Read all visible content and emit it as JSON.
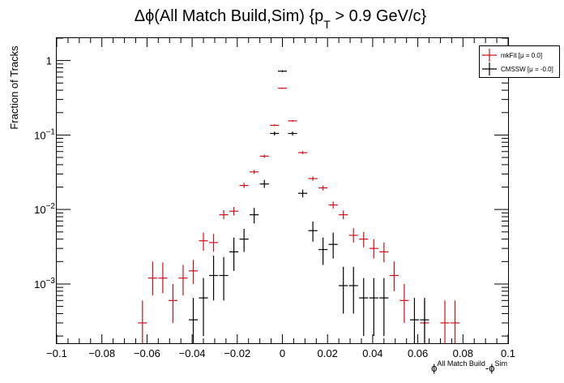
{
  "chart_data": {
    "type": "scatter",
    "title": "Δϕ(All Match Build,Sim) {p_T > 0.9 GeV/c}",
    "title_parts": {
      "prefix": "Δϕ(All Match Build,Sim) {p",
      "sub": "T",
      "suffix": " > 0.9 GeV/c}"
    },
    "xlabel": "ϕ^{All Match Build}-ϕ^{Sim}",
    "xlabel_parts": {
      "base1": "ϕ",
      "sup1": "All Match Build",
      "dash": "-",
      "base2": "ϕ",
      "sup2": "Sim"
    },
    "ylabel": "Fraction of Tracks",
    "xlim": [
      -0.1,
      0.1
    ],
    "ylim": [
      0.00016,
      2.0
    ],
    "yscale": "log",
    "grid": false,
    "legend_position": "top-right",
    "x_ticks": [
      "−0.1",
      "−0.08",
      "−0.06",
      "−0.04",
      "−0.02",
      "0",
      "0.02",
      "0.04",
      "0.06",
      "0.08",
      "0.1"
    ],
    "y_ticks": [
      {
        "base": "10",
        "exp": "−3",
        "value": 0.001
      },
      {
        "base": "10",
        "exp": "−2",
        "value": 0.01
      },
      {
        "base": "10",
        "exp": "−1",
        "value": 0.1
      },
      {
        "base": "1",
        "exp": "",
        "value": 1
      }
    ],
    "series": [
      {
        "name": "mkFit  [μ = 0.0]",
        "color": "#d0101a",
        "points": [
          {
            "x": -0.062,
            "y": 0.0003,
            "xerr": 0.002,
            "ylo": 0.00016,
            "yhi": 0.0006
          },
          {
            "x": -0.0575,
            "y": 0.0012,
            "xerr": 0.002,
            "ylo": 0.0007,
            "yhi": 0.002
          },
          {
            "x": -0.053,
            "y": 0.0012,
            "xerr": 0.002,
            "ylo": 0.00075,
            "yhi": 0.00195
          },
          {
            "x": -0.0485,
            "y": 0.0006,
            "xerr": 0.002,
            "ylo": 0.0003,
            "yhi": 0.001
          },
          {
            "x": -0.044,
            "y": 0.0012,
            "xerr": 0.002,
            "ylo": 0.0007,
            "yhi": 0.0018
          },
          {
            "x": -0.0395,
            "y": 0.0015,
            "xerr": 0.002,
            "ylo": 0.001,
            "yhi": 0.0021
          },
          {
            "x": -0.035,
            "y": 0.0038,
            "xerr": 0.002,
            "ylo": 0.0028,
            "yhi": 0.0049
          },
          {
            "x": -0.0305,
            "y": 0.0036,
            "xerr": 0.002,
            "ylo": 0.0027,
            "yhi": 0.0047
          },
          {
            "x": -0.026,
            "y": 0.0085,
            "xerr": 0.002,
            "ylo": 0.0074,
            "yhi": 0.0098
          },
          {
            "x": -0.0215,
            "y": 0.0095,
            "xerr": 0.002,
            "ylo": 0.0083,
            "yhi": 0.0108
          },
          {
            "x": -0.017,
            "y": 0.021,
            "xerr": 0.002,
            "ylo": 0.0195,
            "yhi": 0.0227
          },
          {
            "x": -0.0125,
            "y": 0.032,
            "xerr": 0.002,
            "ylo": 0.03,
            "yhi": 0.034
          },
          {
            "x": -0.008,
            "y": 0.052,
            "xerr": 0.002,
            "ylo": 0.0495,
            "yhi": 0.0545
          },
          {
            "x": -0.0035,
            "y": 0.135,
            "xerr": 0.002,
            "ylo": 0.131,
            "yhi": 0.139
          },
          {
            "x": 0.0,
            "y": 0.425,
            "xerr": 0.002,
            "ylo": 0.417,
            "yhi": 0.433
          },
          {
            "x": 0.0045,
            "y": 0.155,
            "xerr": 0.002,
            "ylo": 0.1505,
            "yhi": 0.1595
          },
          {
            "x": 0.009,
            "y": 0.058,
            "xerr": 0.002,
            "ylo": 0.0555,
            "yhi": 0.0605
          },
          {
            "x": 0.0135,
            "y": 0.026,
            "xerr": 0.002,
            "ylo": 0.0243,
            "yhi": 0.0277
          },
          {
            "x": 0.018,
            "y": 0.0195,
            "xerr": 0.002,
            "ylo": 0.018,
            "yhi": 0.021
          },
          {
            "x": 0.0225,
            "y": 0.0115,
            "xerr": 0.002,
            "ylo": 0.0103,
            "yhi": 0.0128
          },
          {
            "x": 0.027,
            "y": 0.0085,
            "xerr": 0.002,
            "ylo": 0.0074,
            "yhi": 0.0097
          },
          {
            "x": 0.0315,
            "y": 0.0045,
            "xerr": 0.002,
            "ylo": 0.0036,
            "yhi": 0.0056
          },
          {
            "x": 0.036,
            "y": 0.004,
            "xerr": 0.002,
            "ylo": 0.0031,
            "yhi": 0.005
          },
          {
            "x": 0.0405,
            "y": 0.003,
            "xerr": 0.002,
            "ylo": 0.0022,
            "yhi": 0.004
          },
          {
            "x": 0.045,
            "y": 0.0027,
            "xerr": 0.002,
            "ylo": 0.00195,
            "yhi": 0.0036
          },
          {
            "x": 0.0495,
            "y": 0.0013,
            "xerr": 0.002,
            "ylo": 0.0008,
            "yhi": 0.002
          },
          {
            "x": 0.054,
            "y": 0.0006,
            "xerr": 0.002,
            "ylo": 0.0003,
            "yhi": 0.001
          },
          {
            "x": 0.063,
            "y": 0.0003,
            "xerr": 0.002,
            "ylo": 0.00016,
            "yhi": 0.0006
          },
          {
            "x": 0.072,
            "y": 0.0003,
            "xerr": 0.002,
            "ylo": 0.00016,
            "yhi": 0.0006
          },
          {
            "x": 0.0765,
            "y": 0.0003,
            "xerr": 0.002,
            "ylo": 0.00016,
            "yhi": 0.0006
          }
        ]
      },
      {
        "name": "CMSSW  [μ = -0.0]",
        "color": "#000000",
        "points": [
          {
            "x": -0.0395,
            "y": 0.00033,
            "xerr": 0.002,
            "ylo": 0.00016,
            "yhi": 0.00065
          },
          {
            "x": -0.035,
            "y": 0.00065,
            "xerr": 0.002,
            "ylo": 0.0002,
            "yhi": 0.0012
          },
          {
            "x": -0.0305,
            "y": 0.0013,
            "xerr": 0.002,
            "ylo": 0.0006,
            "yhi": 0.0024
          },
          {
            "x": -0.026,
            "y": 0.0013,
            "xerr": 0.002,
            "ylo": 0.0006,
            "yhi": 0.0023
          },
          {
            "x": -0.0215,
            "y": 0.0027,
            "xerr": 0.002,
            "ylo": 0.0015,
            "yhi": 0.0042
          },
          {
            "x": -0.017,
            "y": 0.004,
            "xerr": 0.002,
            "ylo": 0.0027,
            "yhi": 0.0055
          },
          {
            "x": -0.0125,
            "y": 0.0085,
            "xerr": 0.002,
            "ylo": 0.0065,
            "yhi": 0.0105
          },
          {
            "x": -0.008,
            "y": 0.022,
            "xerr": 0.002,
            "ylo": 0.0195,
            "yhi": 0.025
          },
          {
            "x": -0.0035,
            "y": 0.105,
            "xerr": 0.002,
            "ylo": 0.099,
            "yhi": 0.111
          },
          {
            "x": 0.0,
            "y": 0.72,
            "xerr": 0.002,
            "ylo": 0.7,
            "yhi": 0.74
          },
          {
            "x": 0.0045,
            "y": 0.105,
            "xerr": 0.002,
            "ylo": 0.099,
            "yhi": 0.111
          },
          {
            "x": 0.009,
            "y": 0.0165,
            "xerr": 0.002,
            "ylo": 0.0145,
            "yhi": 0.0185
          },
          {
            "x": 0.0135,
            "y": 0.0052,
            "xerr": 0.002,
            "ylo": 0.0037,
            "yhi": 0.0069
          },
          {
            "x": 0.018,
            "y": 0.0029,
            "xerr": 0.002,
            "ylo": 0.0018,
            "yhi": 0.0042
          },
          {
            "x": 0.0225,
            "y": 0.0034,
            "xerr": 0.002,
            "ylo": 0.0022,
            "yhi": 0.0049
          },
          {
            "x": 0.027,
            "y": 0.00095,
            "xerr": 0.002,
            "ylo": 0.0004,
            "yhi": 0.0017
          },
          {
            "x": 0.0315,
            "y": 0.00095,
            "xerr": 0.002,
            "ylo": 0.0004,
            "yhi": 0.0017
          },
          {
            "x": 0.036,
            "y": 0.00065,
            "xerr": 0.002,
            "ylo": 0.0002,
            "yhi": 0.0012
          },
          {
            "x": 0.0405,
            "y": 0.00065,
            "xerr": 0.002,
            "ylo": 0.0002,
            "yhi": 0.0012
          },
          {
            "x": 0.045,
            "y": 0.00065,
            "xerr": 0.002,
            "ylo": 0.0002,
            "yhi": 0.0012
          },
          {
            "x": 0.0585,
            "y": 0.00033,
            "xerr": 0.002,
            "ylo": 0.00016,
            "yhi": 0.00065
          },
          {
            "x": 0.063,
            "y": 0.00033,
            "xerr": 0.002,
            "ylo": 0.00016,
            "yhi": 0.00065
          }
        ]
      }
    ]
  }
}
